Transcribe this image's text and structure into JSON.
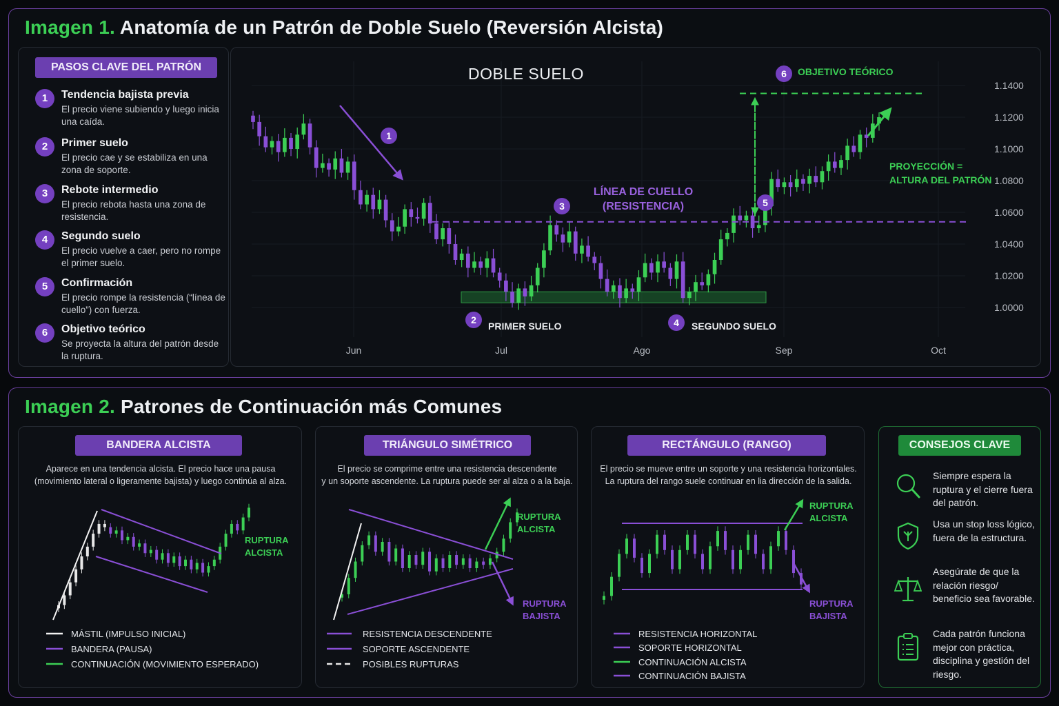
{
  "section1": {
    "label": "Imagen 1.",
    "title": "Anatomía de un Patrón de Doble Suelo (Reversión Alcista)"
  },
  "steps": {
    "heading": "PASOS CLAVE DEL PATRÓN",
    "items": [
      {
        "num": "1",
        "title": "Tendencia bajista previa",
        "desc": "El precio viene subiendo y luego inicia una caída."
      },
      {
        "num": "2",
        "title": "Primer suelo",
        "desc": "El precio cae y se estabiliza en una zona de soporte."
      },
      {
        "num": "3",
        "title": "Rebote intermedio",
        "desc": "El precio rebota hasta una zona de resistencia."
      },
      {
        "num": "4",
        "title": "Segundo suelo",
        "desc": "El precio vuelve a caer, pero no rompe el primer suelo."
      },
      {
        "num": "5",
        "title": "Confirmación",
        "desc": "El precio rompe la resistencia (“línea de cuello”) con fuerza."
      },
      {
        "num": "6",
        "title": "Objetivo teórico",
        "desc": "Se proyecta la altura del patrón desde la ruptura."
      }
    ]
  },
  "chart_data": {
    "type": "candlestick",
    "title": "DOBLE SUELO",
    "x_ticks": [
      "Jun",
      "Jul",
      "Ago",
      "Sep",
      "Oct"
    ],
    "y_ticks": [
      "1.1400",
      "1.1200",
      "1.1000",
      "1.0800",
      "1.0600",
      "1.0400",
      "1.0200",
      "1.0000"
    ],
    "ylim": [
      1.0,
      1.14
    ],
    "neckline": 1.054,
    "target": 1.135,
    "support_zone": [
      1.0,
      1.006
    ],
    "close_series": [
      1.117,
      1.108,
      1.101,
      1.105,
      1.098,
      1.107,
      1.1,
      1.109,
      1.116,
      1.101,
      1.088,
      1.091,
      1.087,
      1.094,
      1.085,
      1.092,
      1.074,
      1.065,
      1.071,
      1.062,
      1.068,
      1.055,
      1.048,
      1.051,
      1.062,
      1.057,
      1.056,
      1.066,
      1.053,
      1.043,
      1.05,
      1.04,
      1.03,
      1.034,
      1.025,
      1.029,
      1.025,
      1.031,
      1.022,
      1.017,
      1.01,
      1.003,
      1.012,
      1.007,
      1.014,
      1.025,
      1.036,
      1.052,
      1.046,
      1.041,
      1.048,
      1.034,
      1.039,
      1.032,
      1.028,
      1.018,
      1.01,
      1.014,
      1.006,
      1.012,
      1.01,
      1.019,
      1.028,
      1.022,
      1.029,
      1.025,
      1.018,
      1.029,
      1.006,
      1.01,
      1.016,
      1.014,
      1.021,
      1.03,
      1.043,
      1.047,
      1.058,
      1.055,
      1.058,
      1.05,
      1.052,
      1.064,
      1.081,
      1.076,
      1.079,
      1.076,
      1.081,
      1.078,
      1.083,
      1.079,
      1.086,
      1.092,
      1.088,
      1.093,
      1.102,
      1.098,
      1.109,
      1.107,
      1.116,
      1.12
    ],
    "annotations": {
      "neckline_label_1": "LÍNEA DE CUELLO",
      "neckline_label_2": "(RESISTENCIA)",
      "first_low": "PRIMER SUELO",
      "second_low": "SEGUNDO SUELO",
      "target": "OBJETIVO TEÓRICO",
      "projection_1": "PROYECCIÓN =",
      "projection_2": "ALTURA DEL PATRÓN",
      "markers": [
        "1",
        "2",
        "3",
        "4",
        "5",
        "6"
      ]
    }
  },
  "section2": {
    "label": "Imagen 2.",
    "title": "Patrones de Continuación más Comunes"
  },
  "flag": {
    "title": "BANDERA ALCISTA",
    "desc_1": "Aparece en una tendencia alcista. El precio hace una pausa",
    "desc_2": "(movimiento lateral o ligeramente bajista) y luego continúa al alza.",
    "breakout_1": "RUPTURA",
    "breakout_2": "ALCISTA",
    "legend": [
      "MÁSTIL (IMPULSO INICIAL)",
      "BANDERA (PAUSA)",
      "CONTINUACIÓN (MOVIMIENTO ESPERADO)"
    ]
  },
  "triangle": {
    "title": "TRIÁNGULO SIMÉTRICO",
    "desc_1": "El precio se comprime entre una resistencia descendente",
    "desc_2": "y un soporte ascendente. La ruptura puede ser al alza o a la baja.",
    "up_1": "RUPTURA",
    "up_2": "ALCISTA",
    "down_1": "RUPTURA",
    "down_2": "BAJISTA",
    "legend": [
      "RESISTENCIA DESCENDENTE",
      "SOPORTE ASCENDENTE",
      "POSIBLES RUPTURAS"
    ]
  },
  "rectangle": {
    "title": "RECTÁNGULO (RANGO)",
    "desc_1": "El precio se mueve entre un soporte y una resistencia horizontales.",
    "desc_2": "La ruptura del rango suele continuar en lia dirección de la salida.",
    "up_1": "RUPTURA",
    "up_2": "ALCISTA",
    "down_1": "RUPTURA",
    "down_2": "BAJISTA",
    "legend": [
      "RESISTENCIA HORIZONTAL",
      "SOPORTE HORIZONTAL",
      "CONTINUACIÓN ALCISTA",
      "CONTINUACIÓN BAJISTA"
    ]
  },
  "tips": {
    "title": "CONSEJOS CLAVE",
    "items": [
      {
        "icon": "magnifier-icon",
        "text": "Siempre espera la ruptura y el cierre fuera del patrón."
      },
      {
        "icon": "shield-icon",
        "text": "Usa un stop loss lógico, fuera de la estructura."
      },
      {
        "icon": "scale-icon",
        "text": "Asegúrate de que la relación riesgo/ beneficio sea favorable."
      },
      {
        "icon": "clipboard-icon",
        "text": "Cada patrón funciona mejor con práctica, disciplina y gestión del riesgo."
      }
    ]
  },
  "colors": {
    "green": "#3ccf55",
    "purple": "#8a4fd6",
    "bg": "#0b0e12"
  }
}
